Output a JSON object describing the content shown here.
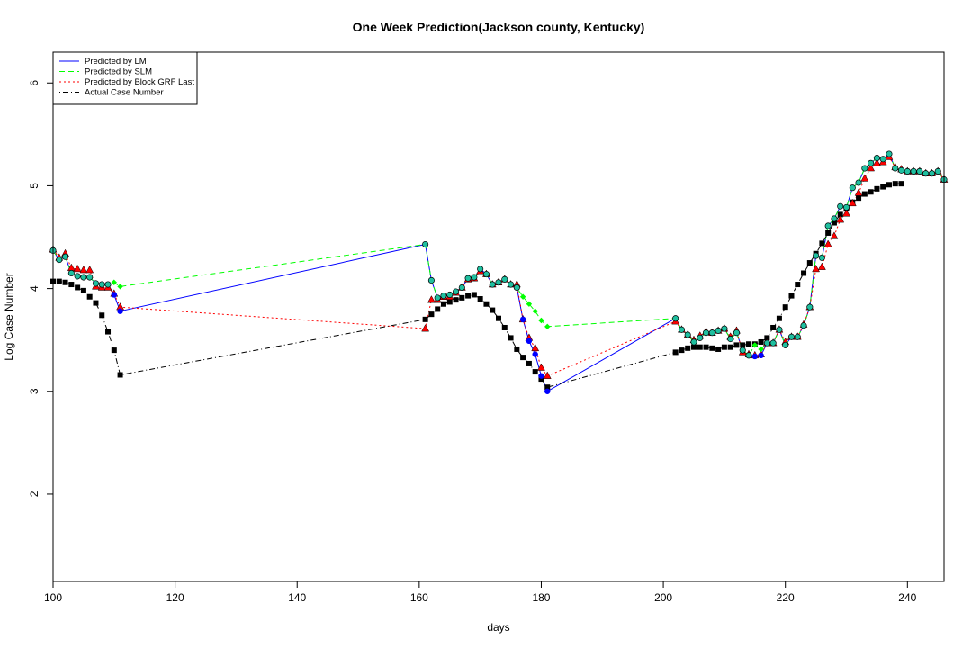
{
  "chart_data": {
    "type": "line",
    "title": "One Week Prediction(Jackson county, Kentucky)",
    "xlabel": "days",
    "ylabel": "Log Case Number",
    "xlim": [
      100,
      246
    ],
    "ylim": [
      1.15,
      6.3
    ],
    "x_ticks": [
      100,
      120,
      140,
      160,
      180,
      200,
      220,
      240
    ],
    "y_ticks": [
      2,
      3,
      4,
      5,
      6
    ],
    "grid": false,
    "legend_position": "top-left",
    "legend": [
      {
        "label": "Predicted by LM",
        "color": "#0000ff",
        "dash": "solid"
      },
      {
        "label": "Predicted by SLM",
        "color": "#00ff00",
        "dash": "dashed"
      },
      {
        "label": "Predicted by Block GRF Last",
        "color": "#ff0000",
        "dash": "dotted"
      },
      {
        "label": "Actual Case Number",
        "color": "#000000",
        "dash": "dotdash"
      }
    ],
    "series": [
      {
        "name": "Predicted by LM",
        "color": "#0000ff",
        "marker": "circle",
        "points": [
          [
            100,
            4.37
          ],
          [
            101,
            4.28
          ],
          [
            102,
            4.31
          ],
          [
            103,
            4.15
          ],
          [
            104,
            4.12
          ],
          [
            105,
            4.11
          ],
          [
            106,
            4.11
          ],
          [
            107,
            4.05
          ],
          [
            108,
            4.04
          ],
          [
            109,
            4.04
          ],
          [
            110,
            3.94
          ],
          [
            111,
            3.78
          ],
          [
            161,
            4.43
          ],
          [
            162,
            4.08
          ],
          [
            163,
            3.91
          ],
          [
            164,
            3.93
          ],
          [
            165,
            3.94
          ],
          [
            166,
            3.97
          ],
          [
            167,
            4.01
          ],
          [
            168,
            4.1
          ],
          [
            169,
            4.11
          ],
          [
            170,
            4.19
          ],
          [
            171,
            4.14
          ],
          [
            172,
            4.04
          ],
          [
            173,
            4.06
          ],
          [
            174,
            4.09
          ],
          [
            175,
            4.04
          ],
          [
            176,
            4.01
          ],
          [
            177,
            3.7
          ],
          [
            178,
            3.49
          ],
          [
            179,
            3.36
          ],
          [
            180,
            3.15
          ],
          [
            181,
            3.0
          ],
          [
            202,
            3.71
          ],
          [
            203,
            3.6
          ],
          [
            204,
            3.55
          ],
          [
            205,
            3.48
          ],
          [
            206,
            3.52
          ],
          [
            207,
            3.57
          ],
          [
            208,
            3.57
          ],
          [
            209,
            3.59
          ],
          [
            210,
            3.61
          ],
          [
            211,
            3.51
          ],
          [
            212,
            3.57
          ],
          [
            213,
            3.4
          ],
          [
            214,
            3.35
          ],
          [
            215,
            3.34
          ],
          [
            216,
            3.35
          ],
          [
            217,
            3.47
          ],
          [
            218,
            3.47
          ],
          [
            219,
            3.6
          ],
          [
            220,
            3.45
          ],
          [
            221,
            3.53
          ],
          [
            222,
            3.53
          ],
          [
            223,
            3.64
          ],
          [
            224,
            3.82
          ],
          [
            225,
            4.32
          ],
          [
            226,
            4.3
          ],
          [
            227,
            4.61
          ],
          [
            228,
            4.68
          ],
          [
            229,
            4.8
          ],
          [
            230,
            4.79
          ],
          [
            231,
            4.98
          ],
          [
            232,
            5.03
          ],
          [
            233,
            5.17
          ],
          [
            234,
            5.22
          ],
          [
            235,
            5.27
          ],
          [
            236,
            5.26
          ],
          [
            237,
            5.31
          ],
          [
            238,
            5.17
          ],
          [
            239,
            5.15
          ],
          [
            240,
            5.14
          ],
          [
            241,
            5.14
          ],
          [
            242,
            5.14
          ],
          [
            243,
            5.12
          ],
          [
            244,
            5.12
          ],
          [
            245,
            5.14
          ],
          [
            246,
            5.06
          ]
        ]
      },
      {
        "name": "Predicted by SLM",
        "color": "#00ff00",
        "marker": "diamond",
        "points": [
          [
            100,
            4.37
          ],
          [
            101,
            4.28
          ],
          [
            102,
            4.31
          ],
          [
            103,
            4.15
          ],
          [
            104,
            4.12
          ],
          [
            105,
            4.11
          ],
          [
            106,
            4.11
          ],
          [
            107,
            4.05
          ],
          [
            108,
            4.04
          ],
          [
            109,
            4.04
          ],
          [
            110,
            4.06
          ],
          [
            111,
            4.02
          ],
          [
            161,
            4.43
          ],
          [
            162,
            4.08
          ],
          [
            163,
            3.91
          ],
          [
            164,
            3.93
          ],
          [
            165,
            3.94
          ],
          [
            166,
            3.97
          ],
          [
            167,
            4.01
          ],
          [
            168,
            4.1
          ],
          [
            169,
            4.11
          ],
          [
            170,
            4.19
          ],
          [
            171,
            4.14
          ],
          [
            172,
            4.04
          ],
          [
            173,
            4.06
          ],
          [
            174,
            4.09
          ],
          [
            175,
            4.04
          ],
          [
            176,
            4.01
          ],
          [
            177,
            3.92
          ],
          [
            178,
            3.85
          ],
          [
            179,
            3.78
          ],
          [
            180,
            3.69
          ],
          [
            181,
            3.63
          ],
          [
            202,
            3.71
          ],
          [
            203,
            3.6
          ],
          [
            204,
            3.55
          ],
          [
            205,
            3.48
          ],
          [
            206,
            3.52
          ],
          [
            207,
            3.57
          ],
          [
            208,
            3.57
          ],
          [
            209,
            3.59
          ],
          [
            210,
            3.61
          ],
          [
            211,
            3.51
          ],
          [
            212,
            3.57
          ],
          [
            213,
            3.4
          ],
          [
            214,
            3.35
          ],
          [
            215,
            3.45
          ],
          [
            216,
            3.41
          ],
          [
            217,
            3.47
          ],
          [
            218,
            3.47
          ],
          [
            219,
            3.6
          ],
          [
            220,
            3.45
          ],
          [
            221,
            3.53
          ],
          [
            222,
            3.53
          ],
          [
            223,
            3.64
          ],
          [
            224,
            3.82
          ],
          [
            225,
            4.32
          ],
          [
            226,
            4.3
          ],
          [
            227,
            4.61
          ],
          [
            228,
            4.68
          ],
          [
            229,
            4.8
          ],
          [
            230,
            4.79
          ],
          [
            231,
            4.98
          ],
          [
            232,
            5.03
          ],
          [
            233,
            5.17
          ],
          [
            234,
            5.22
          ],
          [
            235,
            5.27
          ],
          [
            236,
            5.26
          ],
          [
            237,
            5.31
          ],
          [
            238,
            5.17
          ],
          [
            239,
            5.15
          ],
          [
            240,
            5.14
          ],
          [
            241,
            5.14
          ],
          [
            242,
            5.14
          ],
          [
            243,
            5.12
          ],
          [
            244,
            5.12
          ],
          [
            245,
            5.14
          ],
          [
            246,
            5.06
          ]
        ]
      },
      {
        "name": "Predicted by Block GRF Last",
        "color": "#ff0000",
        "marker": "triangle",
        "points": [
          [
            100,
            4.38
          ],
          [
            101,
            4.3
          ],
          [
            102,
            4.34
          ],
          [
            103,
            4.2
          ],
          [
            104,
            4.19
          ],
          [
            105,
            4.18
          ],
          [
            106,
            4.18
          ],
          [
            107,
            4.02
          ],
          [
            108,
            4.01
          ],
          [
            109,
            4.01
          ],
          [
            110,
            3.95
          ],
          [
            111,
            3.82
          ],
          [
            161,
            3.61
          ],
          [
            162,
            3.89
          ],
          [
            163,
            3.89
          ],
          [
            164,
            3.92
          ],
          [
            165,
            3.92
          ],
          [
            166,
            3.96
          ],
          [
            167,
            4.01
          ],
          [
            168,
            4.09
          ],
          [
            169,
            4.1
          ],
          [
            170,
            4.17
          ],
          [
            171,
            4.14
          ],
          [
            172,
            4.04
          ],
          [
            173,
            4.06
          ],
          [
            174,
            4.09
          ],
          [
            175,
            4.04
          ],
          [
            176,
            4.04
          ],
          [
            177,
            3.7
          ],
          [
            178,
            3.52
          ],
          [
            179,
            3.42
          ],
          [
            180,
            3.23
          ],
          [
            181,
            3.15
          ],
          [
            202,
            3.68
          ],
          [
            203,
            3.6
          ],
          [
            204,
            3.55
          ],
          [
            205,
            3.5
          ],
          [
            206,
            3.54
          ],
          [
            207,
            3.58
          ],
          [
            208,
            3.57
          ],
          [
            209,
            3.59
          ],
          [
            210,
            3.61
          ],
          [
            211,
            3.53
          ],
          [
            212,
            3.59
          ],
          [
            213,
            3.38
          ],
          [
            214,
            3.36
          ],
          [
            215,
            3.35
          ],
          [
            216,
            3.36
          ],
          [
            217,
            3.47
          ],
          [
            218,
            3.47
          ],
          [
            219,
            3.6
          ],
          [
            220,
            3.48
          ],
          [
            221,
            3.53
          ],
          [
            222,
            3.53
          ],
          [
            223,
            3.65
          ],
          [
            224,
            3.82
          ],
          [
            225,
            4.19
          ],
          [
            226,
            4.21
          ],
          [
            227,
            4.43
          ],
          [
            228,
            4.51
          ],
          [
            229,
            4.67
          ],
          [
            230,
            4.73
          ],
          [
            231,
            4.83
          ],
          [
            232,
            4.93
          ],
          [
            233,
            5.07
          ],
          [
            234,
            5.17
          ],
          [
            235,
            5.22
          ],
          [
            236,
            5.23
          ],
          [
            237,
            5.28
          ],
          [
            238,
            5.18
          ],
          [
            239,
            5.16
          ],
          [
            240,
            5.14
          ],
          [
            241,
            5.14
          ],
          [
            242,
            5.14
          ],
          [
            243,
            5.12
          ],
          [
            244,
            5.12
          ],
          [
            245,
            5.14
          ],
          [
            246,
            5.06
          ]
        ]
      },
      {
        "name": "Actual Case Number",
        "color": "#000000",
        "marker": "square",
        "points": [
          [
            100,
            4.07
          ],
          [
            101,
            4.07
          ],
          [
            102,
            4.06
          ],
          [
            103,
            4.04
          ],
          [
            104,
            4.01
          ],
          [
            105,
            3.98
          ],
          [
            106,
            3.92
          ],
          [
            107,
            3.86
          ],
          [
            108,
            3.74
          ],
          [
            109,
            3.58
          ],
          [
            110,
            3.4
          ],
          [
            111,
            3.16
          ],
          [
            161,
            3.7
          ],
          [
            162,
            3.75
          ],
          [
            163,
            3.8
          ],
          [
            164,
            3.85
          ],
          [
            165,
            3.87
          ],
          [
            166,
            3.89
          ],
          [
            167,
            3.91
          ],
          [
            168,
            3.93
          ],
          [
            169,
            3.94
          ],
          [
            170,
            3.9
          ],
          [
            171,
            3.85
          ],
          [
            172,
            3.79
          ],
          [
            173,
            3.71
          ],
          [
            174,
            3.62
          ],
          [
            175,
            3.52
          ],
          [
            176,
            3.41
          ],
          [
            177,
            3.33
          ],
          [
            178,
            3.27
          ],
          [
            179,
            3.19
          ],
          [
            180,
            3.12
          ],
          [
            181,
            3.04
          ],
          [
            202,
            3.38
          ],
          [
            203,
            3.4
          ],
          [
            204,
            3.42
          ],
          [
            205,
            3.43
          ],
          [
            206,
            3.43
          ],
          [
            207,
            3.43
          ],
          [
            208,
            3.42
          ],
          [
            209,
            3.41
          ],
          [
            210,
            3.43
          ],
          [
            211,
            3.43
          ],
          [
            212,
            3.45
          ],
          [
            213,
            3.45
          ],
          [
            214,
            3.46
          ],
          [
            215,
            3.46
          ],
          [
            216,
            3.48
          ],
          [
            217,
            3.52
          ],
          [
            218,
            3.62
          ],
          [
            219,
            3.71
          ],
          [
            220,
            3.82
          ],
          [
            221,
            3.93
          ],
          [
            222,
            4.04
          ],
          [
            223,
            4.15
          ],
          [
            224,
            4.25
          ],
          [
            225,
            4.34
          ],
          [
            226,
            4.44
          ],
          [
            227,
            4.54
          ],
          [
            228,
            4.64
          ],
          [
            229,
            4.72
          ],
          [
            230,
            4.78
          ],
          [
            231,
            4.84
          ],
          [
            232,
            4.88
          ],
          [
            233,
            4.92
          ],
          [
            234,
            4.94
          ],
          [
            235,
            4.97
          ],
          [
            236,
            4.99
          ],
          [
            237,
            5.01
          ],
          [
            238,
            5.02
          ],
          [
            239,
            5.02
          ]
        ]
      }
    ]
  }
}
